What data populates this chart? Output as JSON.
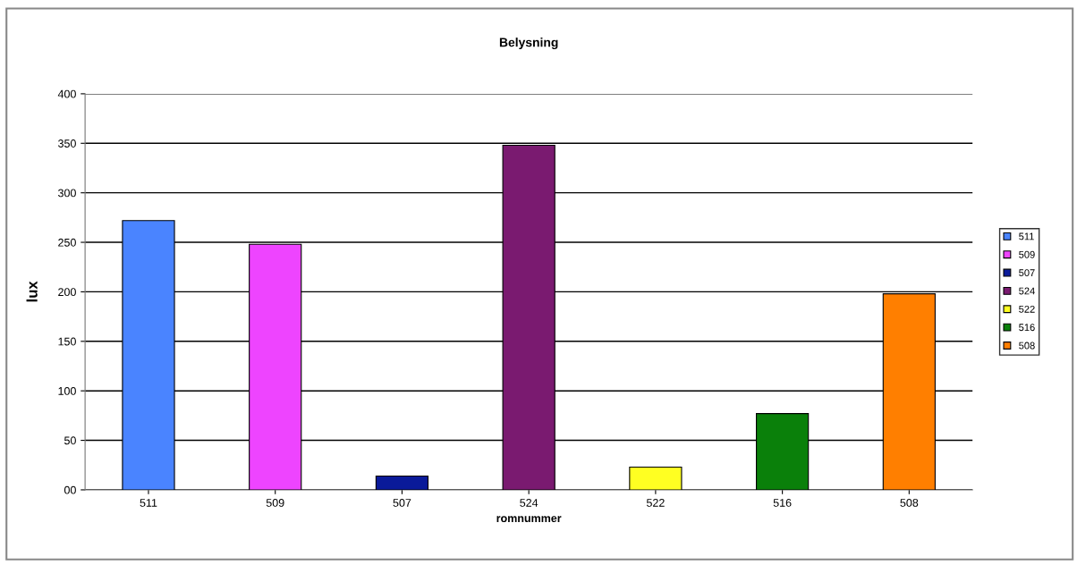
{
  "chart_data": {
    "type": "bar",
    "title": "Belysning",
    "xlabel": "romnummer",
    "ylabel": "lux",
    "categories": [
      "511",
      "509",
      "507",
      "524",
      "522",
      "516",
      "508"
    ],
    "series": [
      {
        "name": "511",
        "color": "#4a84ff",
        "values": [
          272,
          null,
          null,
          null,
          null,
          null,
          null
        ]
      },
      {
        "name": "509",
        "color": "#ee44ff",
        "values": [
          null,
          248,
          null,
          null,
          null,
          null,
          null
        ]
      },
      {
        "name": "507",
        "color": "#0a1a99",
        "values": [
          null,
          null,
          14,
          null,
          null,
          null,
          null
        ]
      },
      {
        "name": "524",
        "color": "#7a1a70",
        "values": [
          null,
          null,
          null,
          348,
          null,
          null,
          null
        ]
      },
      {
        "name": "522",
        "color": "#ffff22",
        "values": [
          null,
          null,
          null,
          null,
          23,
          null,
          null
        ]
      },
      {
        "name": "516",
        "color": "#0a800a",
        "values": [
          null,
          null,
          null,
          null,
          null,
          77,
          null
        ]
      },
      {
        "name": "508",
        "color": "#ff7f00",
        "values": [
          null,
          null,
          null,
          null,
          null,
          null,
          198
        ]
      }
    ],
    "ylim": [
      0,
      400
    ],
    "yticks": [
      {
        "value": 0,
        "label": "00"
      },
      50,
      100,
      150,
      200,
      250,
      300,
      350,
      400
    ],
    "grid": "y",
    "legend": "right"
  }
}
